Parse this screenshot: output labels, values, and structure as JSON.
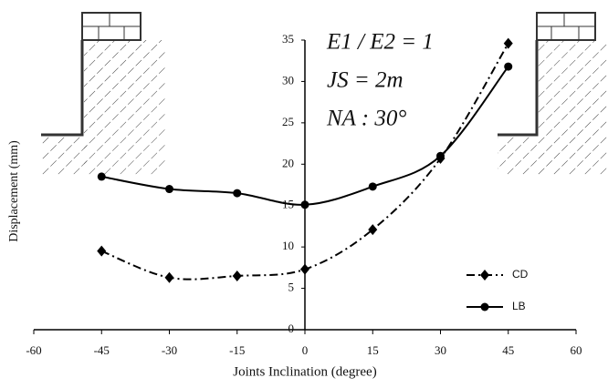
{
  "chart_data": {
    "type": "line",
    "x_label": "Joints Inclination (degree)",
    "y_label": "Displacement (mm)",
    "annotations": [
      "E1 / E2 = 1",
      "JS = 2m",
      "NA : 30°"
    ],
    "x": [
      -45,
      -30,
      -15,
      0,
      15,
      30,
      45
    ],
    "series": [
      {
        "name": "CD",
        "color": "#000000",
        "line_style": "dashdot",
        "marker": "diamond",
        "values": [
          9.5,
          6.3,
          6.5,
          7.3,
          12.1,
          20.7,
          34.6
        ]
      },
      {
        "name": "LB",
        "color": "#000000",
        "line_style": "solid",
        "marker": "circle",
        "values": [
          18.5,
          17.0,
          16.5,
          15.1,
          17.3,
          21.0,
          31.8
        ]
      }
    ],
    "xlim": [
      -60,
      60
    ],
    "xticks": [
      -60,
      -45,
      -30,
      -15,
      0,
      15,
      30,
      45,
      60
    ],
    "ylim": [
      0,
      35
    ],
    "yticks": [
      0,
      5,
      10,
      15,
      20,
      25,
      30,
      35
    ],
    "grid": false,
    "legend": "lower right"
  }
}
